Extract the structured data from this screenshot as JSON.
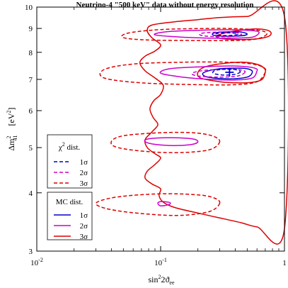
{
  "chart_data": {
    "type": "contour",
    "title": "Neutrino-4 \"500 keV\" data without energy resolution",
    "xlabel_main": "sin",
    "xlabel_sup": "2",
    "xlabel_rest": "2ϑ",
    "xlabel_sub": "ee",
    "ylabel_main": "Δm",
    "ylabel_sup": "2",
    "ylabel_sub": "41",
    "ylabel_unit": "[eV",
    "ylabel_unit_sup": "2",
    "ylabel_unit_end": "]",
    "xscale": "log",
    "yscale": "log",
    "xlim": [
      0.01,
      1
    ],
    "ylim": [
      3,
      10
    ],
    "x_ticks": [
      {
        "value": 0.01,
        "base": "10",
        "exp": "-2"
      },
      {
        "value": 0.1,
        "base": "10",
        "exp": "-1"
      },
      {
        "value": 1,
        "base": "1",
        "exp": ""
      }
    ],
    "y_ticks": [
      {
        "value": 3,
        "label": "3"
      },
      {
        "value": 4,
        "label": "4"
      },
      {
        "value": 5,
        "label": "5"
      },
      {
        "value": 6,
        "label": "6"
      },
      {
        "value": 7,
        "label": "7"
      },
      {
        "value": 8,
        "label": "8"
      },
      {
        "value": 9,
        "label": "9"
      },
      {
        "value": 10,
        "label": "10"
      }
    ],
    "best_fit": {
      "x": 0.36,
      "y": 7.25
    },
    "legend_chi2": {
      "title_main": "χ",
      "title_sup": "2",
      "title_rest": " dist.",
      "entries": [
        {
          "label": "1σ",
          "color": "#0000cc",
          "dash": "dashed"
        },
        {
          "label": "2σ",
          "color": "#cc00cc",
          "dash": "dashed"
        },
        {
          "label": "3σ",
          "color": "#dd0000",
          "dash": "dashed"
        }
      ]
    },
    "legend_mc": {
      "title": "MC dist.",
      "entries": [
        {
          "label": "1σ",
          "color": "#0000cc",
          "dash": "solid"
        },
        {
          "label": "2σ",
          "color": "#cc00cc",
          "dash": "solid"
        },
        {
          "label": "3σ",
          "color": "#dd0000",
          "dash": "solid"
        }
      ]
    },
    "contours": [
      {
        "name": "mc-3sigma-boundary",
        "color": "#dd0000",
        "dash": "solid",
        "closed": true,
        "points": [
          [
            1.0,
            9.55
          ],
          [
            0.5,
            9.55
          ],
          [
            0.3,
            9.5
          ],
          [
            0.2,
            9.4
          ],
          [
            0.13,
            9.3
          ],
          [
            0.085,
            9.15
          ],
          [
            0.078,
            8.9
          ],
          [
            0.085,
            8.6
          ],
          [
            0.1,
            8.3
          ],
          [
            0.09,
            8.05
          ],
          [
            0.075,
            7.85
          ],
          [
            0.068,
            7.6
          ],
          [
            0.075,
            7.3
          ],
          [
            0.09,
            7.05
          ],
          [
            0.105,
            6.8
          ],
          [
            0.1,
            6.5
          ],
          [
            0.088,
            6.3
          ],
          [
            0.082,
            6.05
          ],
          [
            0.087,
            5.8
          ],
          [
            0.095,
            5.6
          ],
          [
            0.085,
            5.4
          ],
          [
            0.075,
            5.2
          ],
          [
            0.078,
            5.0
          ],
          [
            0.09,
            4.85
          ],
          [
            0.1,
            4.75
          ],
          [
            0.09,
            4.6
          ],
          [
            0.078,
            4.45
          ],
          [
            0.075,
            4.3
          ],
          [
            0.085,
            4.18
          ],
          [
            0.1,
            4.08
          ],
          [
            0.097,
            3.95
          ],
          [
            0.105,
            3.82
          ],
          [
            0.13,
            3.72
          ],
          [
            0.2,
            3.62
          ],
          [
            0.32,
            3.52
          ],
          [
            0.45,
            3.45
          ],
          [
            0.6,
            3.38
          ],
          [
            1.0,
            3.35
          ]
        ]
      },
      {
        "name": "mc-3sigma-top-loop",
        "color": "#dd0000",
        "dash": "solid",
        "closed": true,
        "points": [
          [
            0.78,
            8.8
          ],
          [
            0.74,
            8.65
          ],
          [
            0.6,
            8.55
          ],
          [
            0.45,
            8.52
          ],
          [
            0.32,
            8.55
          ],
          [
            0.28,
            8.65
          ],
          [
            0.32,
            8.78
          ],
          [
            0.42,
            8.9
          ],
          [
            0.58,
            8.98
          ],
          [
            0.72,
            8.93
          ]
        ]
      },
      {
        "name": "mc-3sigma-mid-loop",
        "color": "#dd0000",
        "dash": "solid",
        "closed": true,
        "points": [
          [
            0.7,
            7.25
          ],
          [
            0.66,
            7.0
          ],
          [
            0.55,
            6.9
          ],
          [
            0.42,
            6.88
          ],
          [
            0.3,
            6.92
          ],
          [
            0.21,
            7.05
          ],
          [
            0.2,
            7.25
          ],
          [
            0.23,
            7.45
          ],
          [
            0.33,
            7.58
          ],
          [
            0.48,
            7.62
          ],
          [
            0.62,
            7.52
          ],
          [
            0.69,
            7.38
          ]
        ]
      },
      {
        "name": "mc-2sigma-top",
        "color": "#cc00cc",
        "dash": "solid",
        "closed": true,
        "points": [
          [
            0.62,
            8.78
          ],
          [
            0.55,
            8.62
          ],
          [
            0.4,
            8.58
          ],
          [
            0.25,
            8.58
          ],
          [
            0.15,
            8.62
          ],
          [
            0.09,
            8.72
          ],
          [
            0.11,
            8.85
          ],
          [
            0.2,
            8.92
          ],
          [
            0.35,
            8.94
          ],
          [
            0.5,
            8.92
          ],
          [
            0.6,
            8.88
          ]
        ]
      },
      {
        "name": "mc-2sigma-mid",
        "color": "#cc00cc",
        "dash": "solid",
        "closed": true,
        "points": [
          [
            0.6,
            7.3
          ],
          [
            0.55,
            7.05
          ],
          [
            0.4,
            6.98
          ],
          [
            0.25,
            7.0
          ],
          [
            0.15,
            7.08
          ],
          [
            0.1,
            7.22
          ],
          [
            0.12,
            7.38
          ],
          [
            0.22,
            7.45
          ],
          [
            0.38,
            7.48
          ],
          [
            0.52,
            7.44
          ],
          [
            0.59,
            7.38
          ]
        ]
      },
      {
        "name": "mc-2sigma-low",
        "color": "#cc00cc",
        "dash": "solid",
        "closed": true,
        "points": [
          [
            0.13,
            5.05
          ],
          [
            0.18,
            5.08
          ],
          [
            0.2,
            5.15
          ],
          [
            0.18,
            5.22
          ],
          [
            0.12,
            5.25
          ],
          [
            0.08,
            5.22
          ],
          [
            0.075,
            5.15
          ],
          [
            0.09,
            5.08
          ]
        ]
      },
      {
        "name": "mc-2sigma-bottom",
        "color": "#cc00cc",
        "dash": "solid",
        "closed": true,
        "points": [
          [
            0.1,
            3.75
          ],
          [
            0.115,
            3.77
          ],
          [
            0.12,
            3.8
          ],
          [
            0.115,
            3.82
          ],
          [
            0.1,
            3.83
          ],
          [
            0.095,
            3.8
          ]
        ]
      },
      {
        "name": "mc-1sigma-top",
        "color": "#0000cc",
        "dash": "solid",
        "closed": true,
        "points": [
          [
            0.5,
            8.75
          ],
          [
            0.45,
            8.68
          ],
          [
            0.35,
            8.66
          ],
          [
            0.27,
            8.7
          ],
          [
            0.27,
            8.8
          ],
          [
            0.35,
            8.85
          ],
          [
            0.45,
            8.84
          ]
        ]
      },
      {
        "name": "mc-1sigma-mid",
        "color": "#0000cc",
        "dash": "solid",
        "closed": true,
        "points": [
          [
            0.55,
            7.25
          ],
          [
            0.5,
            7.08
          ],
          [
            0.35,
            7.02
          ],
          [
            0.24,
            7.08
          ],
          [
            0.22,
            7.22
          ],
          [
            0.28,
            7.36
          ],
          [
            0.42,
            7.4
          ],
          [
            0.52,
            7.36
          ]
        ]
      },
      {
        "name": "chi2-3sigma-top",
        "color": "#dd0000",
        "dash": "dashed",
        "closed": true,
        "points": [
          [
            0.72,
            8.75
          ],
          [
            0.6,
            8.55
          ],
          [
            0.4,
            8.48
          ],
          [
            0.2,
            8.48
          ],
          [
            0.08,
            8.5
          ],
          [
            0.05,
            8.6
          ],
          [
            0.055,
            8.8
          ],
          [
            0.1,
            8.95
          ],
          [
            0.25,
            9.0
          ],
          [
            0.45,
            8.98
          ],
          [
            0.65,
            8.9
          ]
        ]
      },
      {
        "name": "chi2-3sigma-mid",
        "color": "#dd0000",
        "dash": "dashed",
        "closed": true,
        "points": [
          [
            0.7,
            7.25
          ],
          [
            0.6,
            6.92
          ],
          [
            0.4,
            6.82
          ],
          [
            0.2,
            6.82
          ],
          [
            0.07,
            6.88
          ],
          [
            0.035,
            7.05
          ],
          [
            0.035,
            7.35
          ],
          [
            0.06,
            7.55
          ],
          [
            0.15,
            7.62
          ],
          [
            0.35,
            7.62
          ],
          [
            0.55,
            7.55
          ],
          [
            0.68,
            7.42
          ]
        ]
      },
      {
        "name": "chi2-3sigma-low",
        "color": "#dd0000",
        "dash": "dashed",
        "closed": true,
        "points": [
          [
            0.3,
            5.15
          ],
          [
            0.25,
            4.95
          ],
          [
            0.15,
            4.88
          ],
          [
            0.08,
            4.9
          ],
          [
            0.045,
            5.0
          ],
          [
            0.04,
            5.15
          ],
          [
            0.05,
            5.3
          ],
          [
            0.1,
            5.38
          ],
          [
            0.18,
            5.38
          ],
          [
            0.26,
            5.3
          ]
        ]
      },
      {
        "name": "chi2-3sigma-bottom",
        "color": "#dd0000",
        "dash": "dashed",
        "closed": true,
        "points": [
          [
            0.3,
            3.8
          ],
          [
            0.25,
            3.65
          ],
          [
            0.15,
            3.58
          ],
          [
            0.08,
            3.6
          ],
          [
            0.04,
            3.68
          ],
          [
            0.03,
            3.8
          ],
          [
            0.045,
            3.92
          ],
          [
            0.1,
            3.98
          ],
          [
            0.2,
            3.96
          ],
          [
            0.27,
            3.9
          ]
        ]
      },
      {
        "name": "chi2-2sigma-top",
        "color": "#cc00cc",
        "dash": "dashed",
        "closed": true,
        "points": [
          [
            0.45,
            8.75
          ],
          [
            0.4,
            8.66
          ],
          [
            0.3,
            8.64
          ],
          [
            0.22,
            8.68
          ],
          [
            0.21,
            8.78
          ],
          [
            0.28,
            8.84
          ],
          [
            0.38,
            8.84
          ]
        ]
      },
      {
        "name": "chi2-2sigma-mid",
        "color": "#cc00cc",
        "dash": "dashed",
        "closed": true,
        "points": [
          [
            0.48,
            7.25
          ],
          [
            0.42,
            7.12
          ],
          [
            0.3,
            7.08
          ],
          [
            0.2,
            7.12
          ],
          [
            0.18,
            7.22
          ],
          [
            0.23,
            7.32
          ],
          [
            0.35,
            7.36
          ],
          [
            0.45,
            7.33
          ]
        ]
      },
      {
        "name": "chi2-1sigma-top",
        "color": "#0000cc",
        "dash": "dashed",
        "closed": true,
        "points": [
          [
            0.42,
            8.74
          ],
          [
            0.38,
            8.7
          ],
          [
            0.32,
            8.69
          ],
          [
            0.28,
            8.72
          ],
          [
            0.29,
            8.79
          ],
          [
            0.34,
            8.81
          ],
          [
            0.4,
            8.79
          ]
        ]
      },
      {
        "name": "chi2-1sigma-mid",
        "color": "#0000cc",
        "dash": "dashed",
        "closed": true,
        "points": [
          [
            0.44,
            7.27
          ],
          [
            0.4,
            7.18
          ],
          [
            0.33,
            7.15
          ],
          [
            0.27,
            7.2
          ],
          [
            0.27,
            7.3
          ],
          [
            0.32,
            7.36
          ],
          [
            0.4,
            7.35
          ]
        ]
      }
    ]
  }
}
